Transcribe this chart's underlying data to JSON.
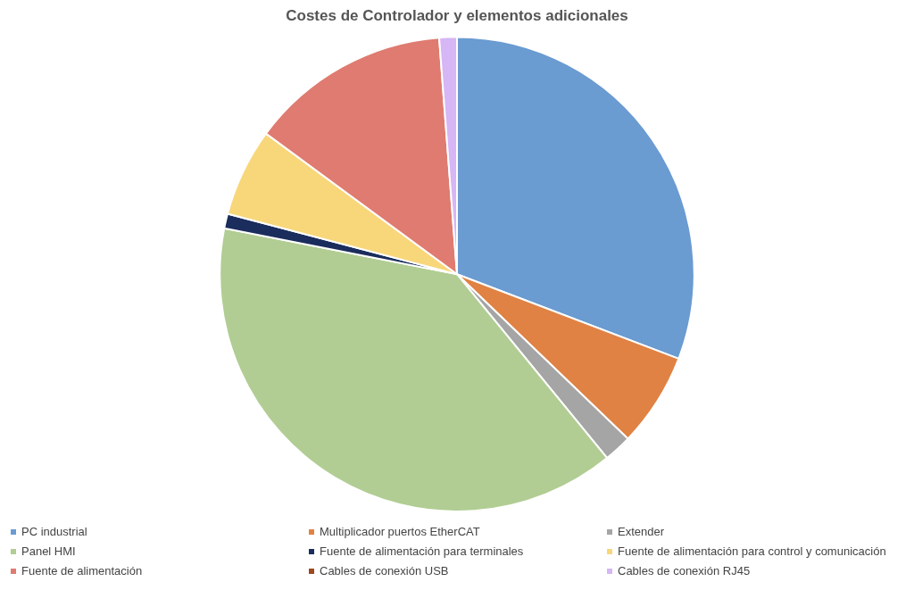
{
  "chart_data": {
    "type": "pie",
    "title": "Costes de Controlador y elementos adicionales",
    "categories": [
      "PC industrial",
      "Multiplicador puertos EtherCAT",
      "Extender",
      "Panel HMI",
      "Fuente de alimentación para terminales",
      "Fuente de alimentación para control y comunicación",
      "Fuente de alimentación",
      "Cables de conexión USB",
      "Cables de conexión RJ45"
    ],
    "values": [
      30.8,
      6.4,
      1.9,
      39.0,
      1.0,
      6.0,
      13.7,
      0,
      1.2
    ],
    "colors": [
      "#6a9bd1",
      "#e08243",
      "#a5a5a5",
      "#b1cd93",
      "#1a2d5c",
      "#f8d77a",
      "#df7b70",
      "#9c4a1e",
      "#d6b6f5"
    ],
    "legend": "bottom"
  }
}
